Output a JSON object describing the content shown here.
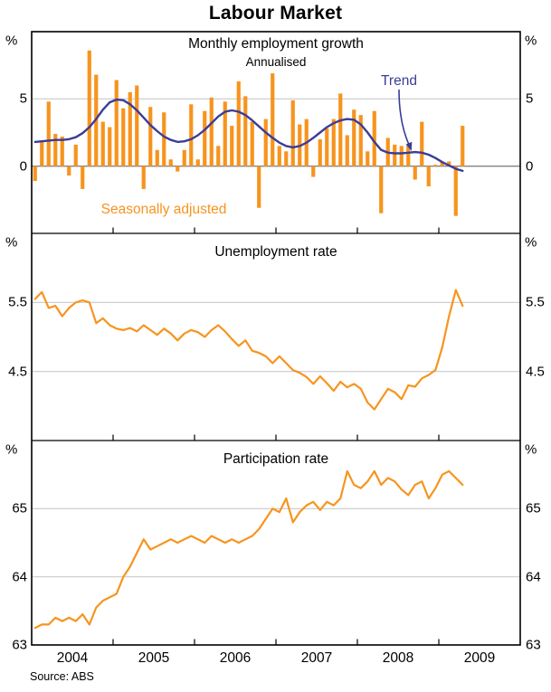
{
  "page_title": "Labour Market",
  "source_note": "Source: ABS",
  "x_axis": {
    "year_labels": [
      "2004",
      "2005",
      "2006",
      "2007",
      "2008",
      "2009"
    ]
  },
  "colors": {
    "bars_orange": "#F7941E",
    "trend_navy": "#3A3D96",
    "gridline_grey": "#C9C9C9",
    "zero_line_grey": "#828282",
    "frame_black": "#000000"
  },
  "chart_data": [
    {
      "panel": 1,
      "type": "bar",
      "title": "Monthly employment growth",
      "subtitle": "Annualised",
      "unit_label": "%",
      "x_start": "2004-01",
      "frequency": "monthly",
      "ylim": [
        -5,
        10
      ],
      "tick_values": [
        5,
        0
      ],
      "tick_labels": [
        "5",
        "0"
      ],
      "gridlines": [
        5
      ],
      "zero_line": true,
      "annotations": {
        "trend_label": "Trend",
        "bars_label": "Seasonally adjusted"
      },
      "series": [
        {
          "name": "Seasonally adjusted",
          "style": "bar",
          "color": "#F7941E",
          "values": [
            -1.1,
            1.9,
            4.8,
            2.4,
            2.2,
            -0.7,
            1.6,
            -1.7,
            8.6,
            6.8,
            3.3,
            2.9,
            6.4,
            4.3,
            5.5,
            6.0,
            -1.7,
            4.4,
            1.2,
            4.0,
            0.5,
            -0.4,
            1.2,
            4.6,
            0.5,
            4.1,
            5.1,
            1.5,
            4.8,
            3.0,
            6.3,
            5.2,
            3.3,
            -3.1,
            3.5,
            6.9,
            1.5,
            1.1,
            4.9,
            3.1,
            3.5,
            -0.8,
            2.0,
            2.8,
            3.5,
            5.4,
            2.3,
            4.2,
            3.8,
            1.1,
            4.1,
            -3.5,
            2.1,
            1.6,
            1.5,
            1.5,
            -1.0,
            3.3,
            -1.5,
            0.1,
            0.3,
            0.35,
            -3.7,
            3.0
          ]
        },
        {
          "name": "Trend",
          "style": "line",
          "color": "#3A3D96",
          "values": [
            1.8,
            1.85,
            1.9,
            1.95,
            1.95,
            2.0,
            2.15,
            2.45,
            2.9,
            3.5,
            4.2,
            4.75,
            4.95,
            4.9,
            4.6,
            4.15,
            3.6,
            3.05,
            2.6,
            2.2,
            1.95,
            1.8,
            1.85,
            2.0,
            2.3,
            2.7,
            3.2,
            3.7,
            4.05,
            4.15,
            4.05,
            3.8,
            3.4,
            2.95,
            2.5,
            2.1,
            1.75,
            1.5,
            1.4,
            1.5,
            1.75,
            2.1,
            2.5,
            2.9,
            3.2,
            3.4,
            3.5,
            3.45,
            3.1,
            2.5,
            1.8,
            1.2,
            1.0,
            0.95,
            0.95,
            1.0,
            1.05,
            1.0,
            0.85,
            0.6,
            0.3,
            0.05,
            -0.2,
            -0.35
          ]
        }
      ]
    },
    {
      "panel": 2,
      "type": "line",
      "title": "Unemployment rate",
      "unit_label": "%",
      "x_start": "2004-01",
      "frequency": "monthly",
      "ylim": [
        3.5,
        6.5
      ],
      "tick_values": [
        5.5,
        4.5
      ],
      "tick_labels": [
        "5.5",
        "4.5"
      ],
      "gridlines": [
        5.5,
        4.5
      ],
      "series": [
        {
          "name": "Unemployment rate",
          "style": "line",
          "color": "#F7941E",
          "values": [
            5.55,
            5.65,
            5.42,
            5.45,
            5.3,
            5.42,
            5.5,
            5.53,
            5.5,
            5.2,
            5.27,
            5.17,
            5.12,
            5.1,
            5.13,
            5.08,
            5.17,
            5.1,
            5.03,
            5.12,
            5.05,
            4.95,
            5.05,
            5.1,
            5.07,
            5.0,
            5.1,
            5.17,
            5.08,
            4.97,
            4.87,
            4.95,
            4.8,
            4.77,
            4.72,
            4.62,
            4.72,
            4.62,
            4.52,
            4.48,
            4.42,
            4.32,
            4.43,
            4.33,
            4.22,
            4.35,
            4.27,
            4.32,
            4.25,
            4.05,
            3.95,
            4.1,
            4.25,
            4.2,
            4.1,
            4.3,
            4.28,
            4.4,
            4.45,
            4.52,
            4.85,
            5.3,
            5.68,
            5.45
          ]
        }
      ]
    },
    {
      "panel": 3,
      "type": "line",
      "title": "Participation rate",
      "unit_label": "%",
      "x_start": "2004-01",
      "frequency": "monthly",
      "ylim": [
        63,
        66
      ],
      "tick_values": [
        65,
        64,
        63
      ],
      "tick_labels": [
        "65",
        "64",
        "63"
      ],
      "gridlines": [
        65,
        64
      ],
      "series": [
        {
          "name": "Participation rate",
          "style": "line",
          "color": "#F7941E",
          "values": [
            63.25,
            63.3,
            63.3,
            63.4,
            63.35,
            63.4,
            63.35,
            63.45,
            63.3,
            63.55,
            63.65,
            63.7,
            63.75,
            64.0,
            64.15,
            64.35,
            64.55,
            64.4,
            64.45,
            64.5,
            64.55,
            64.5,
            64.55,
            64.6,
            64.55,
            64.5,
            64.6,
            64.55,
            64.5,
            64.55,
            64.5,
            64.55,
            64.6,
            64.7,
            64.85,
            65.0,
            64.95,
            65.15,
            64.8,
            64.95,
            65.05,
            65.1,
            64.98,
            65.1,
            65.05,
            65.15,
            65.55,
            65.35,
            65.3,
            65.4,
            65.55,
            65.35,
            65.45,
            65.4,
            65.28,
            65.2,
            65.35,
            65.4,
            65.15,
            65.3,
            65.5,
            65.55,
            65.45,
            65.35
          ]
        }
      ]
    }
  ]
}
